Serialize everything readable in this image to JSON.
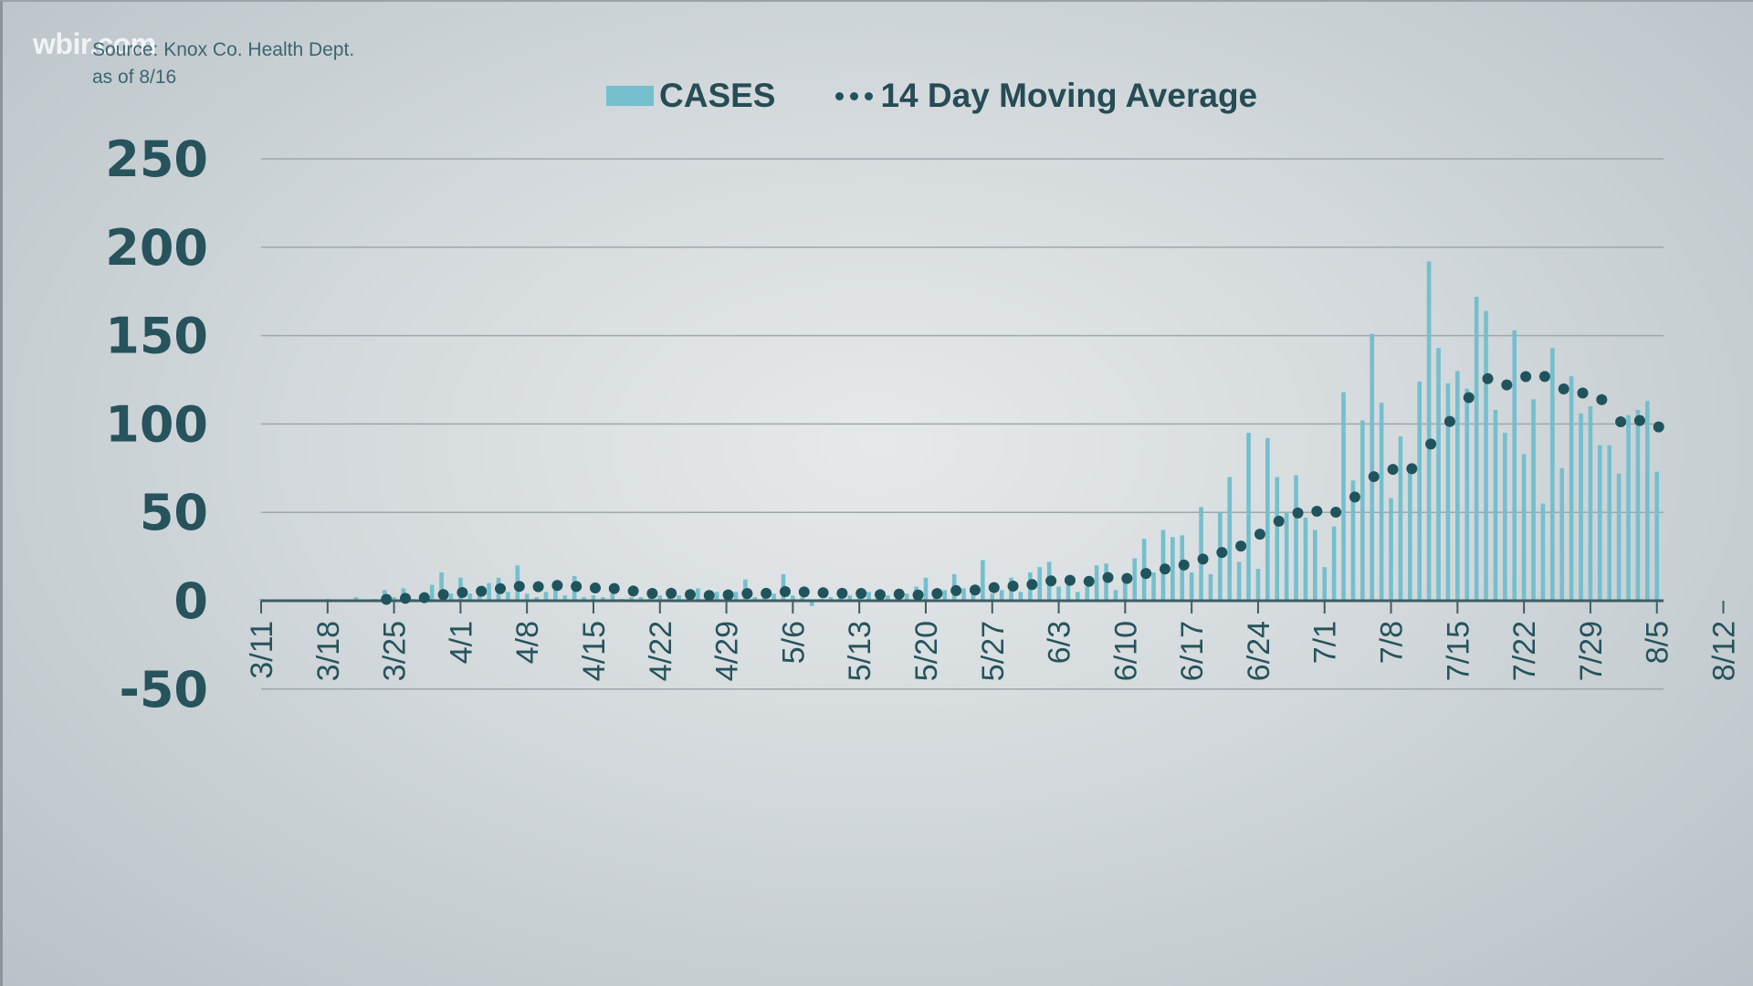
{
  "watermark": "wbir.com",
  "source": {
    "line1": "Source: Knox Co. Health Dept.",
    "line2": "as of 8/16"
  },
  "colors": {
    "bars": "#74bfcd",
    "average": "#1f545d",
    "axis": "#3e5d63",
    "grid": "#9ea7aa",
    "text": "#26535c"
  },
  "chart_data": {
    "type": "bar",
    "title": "",
    "xlabel": "",
    "ylabel": "",
    "ylim": [
      -50,
      250
    ],
    "yticks": [
      250,
      200,
      150,
      100,
      50,
      0,
      -50
    ],
    "grid": true,
    "legend_position": "top-center",
    "legend": [
      {
        "label": "CASES",
        "type": "bar"
      },
      {
        "label": "14 Day Moving Average",
        "type": "dotted-line"
      }
    ],
    "start_date": "3/11",
    "end_date": "8/16",
    "xtick_labels": [
      "3/11",
      "3/18",
      "3/25",
      "4/1",
      "4/8",
      "4/15",
      "4/22",
      "4/29",
      "5/6",
      "5/13",
      "5/20",
      "5/27",
      "6/3",
      "6/10",
      "6/17",
      "6/24",
      "7/1",
      "7/8",
      "7/15",
      "7/22",
      "7/29",
      "8/5",
      "8/12"
    ],
    "series": [
      {
        "name": "CASES",
        "type": "bar",
        "values": [
          1,
          0,
          0,
          0,
          0,
          0,
          0,
          1,
          0,
          0,
          2,
          0,
          1,
          6,
          2,
          7,
          1,
          4,
          9,
          16,
          4,
          13,
          4,
          6,
          10,
          13,
          5,
          20,
          4,
          2,
          5,
          10,
          3,
          14,
          2,
          3,
          2,
          4,
          1,
          2,
          2,
          4,
          3,
          4,
          3,
          2,
          7,
          3,
          5,
          4,
          5,
          12,
          2,
          3,
          4,
          15,
          3,
          2,
          -3,
          1,
          2,
          4,
          3,
          5,
          5,
          2,
          3,
          6,
          4,
          8,
          13,
          4,
          6,
          15,
          7,
          4,
          23,
          4,
          6,
          13,
          5,
          16,
          19,
          22,
          8,
          14,
          5,
          8,
          20,
          21,
          6,
          13,
          24,
          35,
          16,
          40,
          36,
          37,
          16,
          53,
          15,
          50,
          70,
          22,
          95,
          18,
          92,
          70,
          50,
          71,
          47,
          40,
          19,
          42,
          118,
          68,
          102,
          151,
          112,
          58,
          93,
          75,
          124,
          192,
          143,
          123,
          130,
          120,
          172,
          164,
          108,
          95,
          153,
          83,
          114,
          55,
          143,
          75,
          127,
          106,
          110,
          88,
          88,
          72,
          105,
          108,
          113,
          73
        ]
      },
      {
        "name": "14 Day Moving Average",
        "type": "dotted-line",
        "start_date": "3/24"
      }
    ]
  }
}
